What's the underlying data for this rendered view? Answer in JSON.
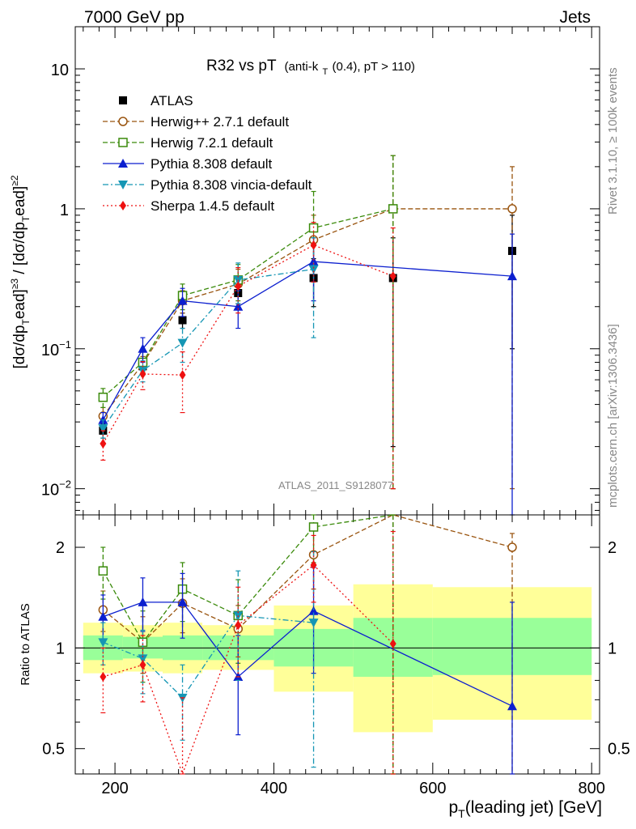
{
  "header": {
    "left": "7000 GeV pp",
    "right": "Jets"
  },
  "side_labels": {
    "rivet": "Rivet 3.1.10, ≥ 100k events",
    "mcplots": "mcplots.cern.ch [arXiv:1306.3436]"
  },
  "watermark": "ATLAS_2011_S9128077",
  "chart_data": [
    {
      "type": "line",
      "panel": "main",
      "title_main": "R32 vs pT",
      "title_sub": "(anti-k",
      "title_sub_idx": "T",
      "title_sub_tail": "(0.4), pT > 110)",
      "ylabel": "[dσ/dpˡeadᵀ≥3 / [dσ/dpˡeadᵀ]≥2",
      "ylabel_parts": [
        "[dσ/dp",
        "T",
        "ead]",
        "≥3",
        " / [dσ/dp",
        "T",
        "ead]",
        "≥2"
      ],
      "xlabel": "p_T(leading jet) [GeV]",
      "xlim": [
        150,
        810
      ],
      "ylim": [
        0.0065,
        20
      ],
      "yscale": "log",
      "x_ticks": [
        200,
        400,
        600,
        800
      ],
      "y_ticks": [
        {
          "value": 0.01,
          "label": "10",
          "exp": "−2"
        },
        {
          "value": 0.1,
          "label": "10",
          "exp": "−1"
        },
        {
          "value": 1,
          "label": "1",
          "exp": ""
        },
        {
          "value": 10,
          "label": "10",
          "exp": ""
        }
      ],
      "legend_position": "top-left",
      "series": [
        {
          "name": "ATLAS",
          "color": "#000000",
          "marker": "square",
          "dash": "none",
          "x": [
            185,
            235,
            285,
            355,
            450,
            550,
            700
          ],
          "y": [
            0.026,
            0.075,
            0.16,
            0.25,
            0.32,
            0.32,
            0.5
          ],
          "err": [
            [
              0.003,
              0.003
            ],
            [
              0.01,
              0.01
            ],
            [
              0.02,
              0.02
            ],
            [
              0.04,
              0.04
            ],
            [
              0.12,
              0.12
            ],
            [
              0.3,
              0.3
            ],
            [
              0.4,
              0.4
            ]
          ]
        },
        {
          "name": "Herwig++ 2.7.1 default",
          "color": "#99540f",
          "marker": "open-circle",
          "dash": "6,3",
          "x": [
            185,
            235,
            285,
            355,
            450,
            550,
            700
          ],
          "y": [
            0.033,
            0.078,
            0.22,
            0.29,
            0.6,
            1.0,
            1.0
          ],
          "err": [
            [
              0.005,
              0.005
            ],
            [
              0.01,
              0.01
            ],
            [
              0.04,
              0.04
            ],
            [
              0.08,
              0.08
            ],
            [
              0.3,
              0.3
            ],
            [
              0.99,
              1.4
            ],
            [
              0.99,
              1.0
            ]
          ]
        },
        {
          "name": "Herwig 7.2.1 default",
          "color": "#3a8a0a",
          "marker": "open-square",
          "dash": "6,3",
          "x": [
            185,
            235,
            285,
            355,
            450,
            550
          ],
          "y": [
            0.045,
            0.08,
            0.24,
            0.31,
            0.73,
            1.0
          ],
          "err": [
            [
              0.007,
              0.007
            ],
            [
              0.015,
              0.015
            ],
            [
              0.05,
              0.05
            ],
            [
              0.09,
              0.09
            ],
            [
              0.35,
              0.6
            ],
            [
              0.99,
              1.4
            ]
          ]
        },
        {
          "name": "Pythia 8.308 default",
          "color": "#0c1fcf",
          "marker": "triangle-up",
          "dash": "none",
          "x": [
            185,
            235,
            285,
            355,
            450,
            700
          ],
          "y": [
            0.031,
            0.1,
            0.22,
            0.2,
            0.42,
            0.33
          ],
          "err": [
            [
              0.004,
              0.004
            ],
            [
              0.02,
              0.02
            ],
            [
              0.05,
              0.05
            ],
            [
              0.06,
              0.06
            ],
            [
              0.2,
              0.2
            ],
            [
              0.33,
              0.33
            ]
          ]
        },
        {
          "name": "Pythia 8.308 vincia-default",
          "color": "#1596b4",
          "marker": "triangle-down",
          "dash": "7,3,2,3",
          "x": [
            185,
            235,
            285,
            355,
            450
          ],
          "y": [
            0.027,
            0.07,
            0.11,
            0.31,
            0.37
          ],
          "err": [
            [
              0.004,
              0.004
            ],
            [
              0.012,
              0.012
            ],
            [
              0.03,
              0.03
            ],
            [
              0.1,
              0.1
            ],
            [
              0.25,
              0.25
            ]
          ]
        },
        {
          "name": "Sherpa 1.4.5 default",
          "color": "#ee1111",
          "marker": "diamond",
          "dash": "2,3",
          "x": [
            185,
            235,
            285,
            355,
            450,
            550
          ],
          "y": [
            0.021,
            0.066,
            0.065,
            0.28,
            0.55,
            0.33
          ],
          "err": [
            [
              0.005,
              0.005
            ],
            [
              0.015,
              0.015
            ],
            [
              0.03,
              0.03
            ],
            [
              0.1,
              0.1
            ],
            [
              0.25,
              0.25
            ],
            [
              0.32,
              0.4
            ]
          ]
        }
      ]
    },
    {
      "type": "line",
      "panel": "ratio",
      "ylabel": "Ratio to ATLAS",
      "xlim": [
        150,
        810
      ],
      "ylim": [
        0.42,
        2.5
      ],
      "yscale": "log",
      "y_ticks": [
        {
          "value": 0.5,
          "label": "0.5"
        },
        {
          "value": 1,
          "label": "1"
        },
        {
          "value": 2,
          "label": "2"
        }
      ],
      "x_ticks": [
        200,
        400,
        600,
        800
      ],
      "bands": [
        {
          "x0": 160,
          "x1": 210,
          "yellow": [
            0.84,
            1.19
          ],
          "green": [
            0.92,
            1.09
          ]
        },
        {
          "x0": 210,
          "x1": 260,
          "yellow": [
            0.85,
            1.17
          ],
          "green": [
            0.93,
            1.08
          ]
        },
        {
          "x0": 260,
          "x1": 310,
          "yellow": [
            0.84,
            1.19
          ],
          "green": [
            0.92,
            1.09
          ]
        },
        {
          "x0": 310,
          "x1": 400,
          "yellow": [
            0.86,
            1.17
          ],
          "green": [
            0.92,
            1.09
          ]
        },
        {
          "x0": 400,
          "x1": 500,
          "yellow": [
            0.74,
            1.34
          ],
          "green": [
            0.88,
            1.14
          ]
        },
        {
          "x0": 500,
          "x1": 600,
          "yellow": [
            0.56,
            1.55
          ],
          "green": [
            0.82,
            1.23
          ]
        },
        {
          "x0": 600,
          "x1": 800,
          "yellow": [
            0.61,
            1.52
          ],
          "green": [
            0.83,
            1.23
          ]
        }
      ],
      "series": [
        {
          "name": "Herwig++ 2.7.1 default",
          "color": "#99540f",
          "marker": "open-circle",
          "dash": "6,3",
          "x": [
            185,
            235,
            285,
            355,
            450,
            550,
            700
          ],
          "y": [
            1.3,
            1.04,
            1.36,
            1.14,
            1.9,
            3.1,
            2.0
          ],
          "err": [
            [
              0.18,
              0.18
            ],
            [
              0.2,
              0.2
            ],
            [
              0.25,
              0.25
            ],
            [
              0.2,
              0.2
            ],
            [
              0.4,
              0.4
            ],
            [
              2.8,
              2.0
            ],
            [
              1.98,
              0.2
            ]
          ]
        },
        {
          "name": "Herwig 7.2.1 default",
          "color": "#3a8a0a",
          "marker": "open-square",
          "dash": "6,3",
          "x": [
            185,
            235,
            285,
            355,
            450,
            550
          ],
          "y": [
            1.7,
            1.04,
            1.5,
            1.25,
            2.3,
            3.1
          ],
          "err": [
            [
              0.3,
              0.3
            ],
            [
              0.25,
              0.25
            ],
            [
              0.3,
              0.3
            ],
            [
              0.35,
              0.35
            ],
            [
              0.5,
              0.5
            ],
            [
              2.8,
              2.0
            ]
          ]
        },
        {
          "name": "Pythia 8.308 default",
          "color": "#0c1fcf",
          "marker": "triangle-up",
          "dash": "none",
          "x": [
            185,
            235,
            285,
            355,
            450,
            700
          ],
          "y": [
            1.24,
            1.37,
            1.37,
            0.82,
            1.29,
            0.67
          ],
          "err": [
            [
              0.2,
              0.2
            ],
            [
              0.25,
              0.25
            ],
            [
              0.3,
              0.3
            ],
            [
              0.27,
              0.27
            ],
            [
              0.45,
              0.45
            ],
            [
              0.66,
              0.7
            ]
          ]
        },
        {
          "name": "Pythia 8.308 vincia-default",
          "color": "#1596b4",
          "marker": "triangle-down",
          "dash": "7,3,2,3",
          "x": [
            185,
            235,
            285,
            355,
            450
          ],
          "y": [
            1.04,
            0.93,
            0.71,
            1.25,
            1.19
          ],
          "err": [
            [
              0.15,
              0.15
            ],
            [
              0.2,
              0.2
            ],
            [
              0.18,
              0.18
            ],
            [
              0.45,
              0.45
            ],
            [
              0.75,
              0.75
            ]
          ]
        },
        {
          "name": "Sherpa 1.4.5 default",
          "color": "#ee1111",
          "marker": "diamond",
          "dash": "2,3",
          "x": [
            185,
            235,
            285,
            355,
            450,
            550
          ],
          "y": [
            0.82,
            0.89,
            0.41,
            1.17,
            1.77,
            1.03
          ],
          "err": [
            [
              0.18,
              0.18
            ],
            [
              0.2,
              0.2
            ],
            [
              0.3,
              0.3
            ],
            [
              0.35,
              0.35
            ],
            [
              0.4,
              0.4
            ],
            [
              1.0,
              1.2
            ]
          ]
        }
      ]
    }
  ]
}
